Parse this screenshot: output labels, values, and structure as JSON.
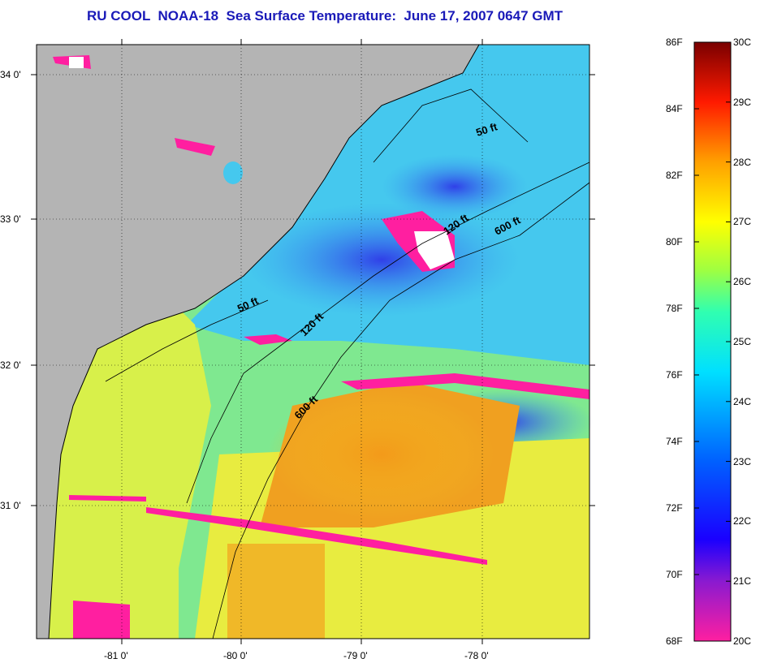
{
  "title": "RU COOL  NOAA-18  Sea Surface Temperature:  June 17, 2007 0647 GMT",
  "map": {
    "lat_labels": [
      "34 0'",
      "33 0'",
      "32 0'",
      "31 0'"
    ],
    "lon_labels": [
      "-81 0'",
      "-80 0'",
      "-79 0'",
      "-78 0'"
    ],
    "contours": [
      {
        "label": "50 ft"
      },
      {
        "label": "50 ft"
      },
      {
        "label": "120 ft"
      },
      {
        "label": "120 ft"
      },
      {
        "label": "600 ft"
      },
      {
        "label": "600 ft"
      }
    ],
    "colors": {
      "land": "#b4b4b4",
      "cloud": "#ffffff",
      "cold": "#ff1fa0"
    }
  },
  "colorbar": {
    "fahrenheit": [
      "86F",
      "84F",
      "82F",
      "80F",
      "78F",
      "76F",
      "74F",
      "72F",
      "70F",
      "68F"
    ],
    "celsius": [
      "30C",
      "29C",
      "28C",
      "27C",
      "26C",
      "25C",
      "24C",
      "23C",
      "22C",
      "21C",
      "20C"
    ]
  }
}
